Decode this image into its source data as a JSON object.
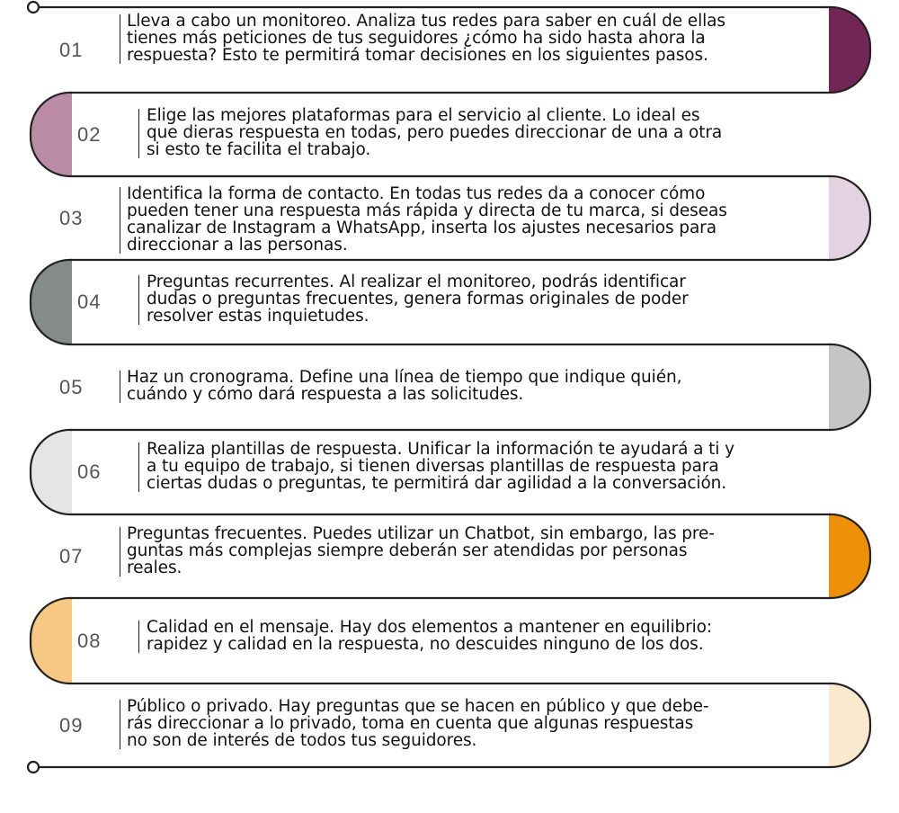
{
  "steps": [
    {
      "number": "01",
      "side": "right",
      "color": "#722656",
      "text": "Lleva a cabo un monitoreo. Analiza tus redes para saber en cuál de ellas\ntienes más peticiones de tus seguidores ¿cómo ha sido hasta ahora la\nrespuesta? Esto te permitirá tomar decisiones en los siguientes pasos."
    },
    {
      "number": "02",
      "side": "left",
      "color": "#bc8ca7",
      "text": "Elige las mejores plataformas para el servicio al cliente. Lo ideal es\nque dieras respuesta en todas, pero puedes direccionar de una a otra\nsi esto te facilita el trabajo."
    },
    {
      "number": "03",
      "side": "right",
      "color": "#e3d2df",
      "text": "Identifica la forma de contacto. En todas tus redes da a conocer cómo\npueden tener una respuesta más rápida y directa de tu marca, si deseas\ncanalizar de Instagram a WhatsApp, inserta los ajustes necesarios para\ndireccionar a las personas."
    },
    {
      "number": "04",
      "side": "left",
      "color": "#858b89",
      "text": "Preguntas recurrentes. Al realizar el monitoreo, podrás identificar\ndudas o preguntas frecuentes, genera formas originales de poder\nresolver estas inquietudes."
    },
    {
      "number": "05",
      "side": "right",
      "color": "#c4c5c4",
      "text": "Haz un cronograma. Define una línea de tiempo que indique quién,\ncuándo y cómo dará respuesta a las solicitudes."
    },
    {
      "number": "06",
      "side": "left",
      "color": "#e4e5e4",
      "text": "Realiza plantillas de respuesta. Unificar la información te ayudará a ti y\na tu equipo de trabajo, si tienen diversas plantillas de respuesta para\nciertas dudas o preguntas, te permitirá dar agilidad a la conversación."
    },
    {
      "number": "07",
      "side": "right",
      "color": "#ee8f08",
      "text": "Preguntas frecuentes. Puedes utilizar un Chatbot, sin embargo, las pre-\nguntas más complejas siempre deberán ser atendidas por personas\nreales."
    },
    {
      "number": "08",
      "side": "left",
      "color": "#f7c784",
      "text": "Calidad en el mensaje. Hay dos elementos a mantener en equilibrio:\nrapidez y calidad en la respuesta, no descuides ninguno de los dos."
    },
    {
      "number": "09",
      "side": "right",
      "color": "#fbe9cf",
      "text": "Público o privado. Hay preguntas que se hacen en público y que debe-\nrás direccionar a lo privado, toma en cuenta que algunas respuestas\nno son de interés de todos tus seguidores."
    }
  ]
}
